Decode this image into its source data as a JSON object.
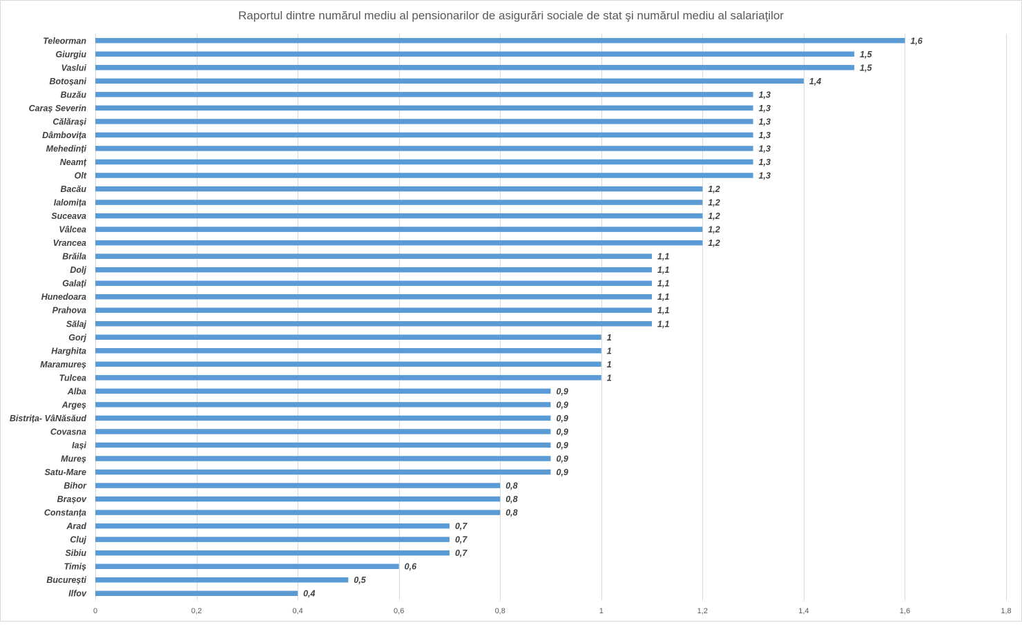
{
  "chart_data": {
    "type": "bar",
    "orientation": "horizontal",
    "title": "Raportul dintre numărul mediu al pensionarilor de asigurări sociale de stat şi numărul mediu al salariaţilor",
    "categories": [
      "Teleorman",
      "Giurgiu",
      "Vaslui",
      "Botoșani",
      "Buzău",
      "Caraș Severin",
      "Călărași",
      "Dâmbovița",
      "Mehedinți",
      "Neamț",
      "Olt",
      "Bacău",
      "Ialomița",
      "Suceava",
      "Vâlcea",
      "Vrancea",
      "Brăila",
      "Dolj",
      "Galați",
      "Hunedoara",
      "Prahova",
      "Sălaj",
      "Gorj",
      "Harghita",
      "Maramureș",
      "Tulcea",
      "Alba",
      "Argeș",
      "Bistrița- VâNăsăud",
      "Covasna",
      "Iași",
      "Mureș",
      "Satu-Mare",
      "Bihor",
      "Brașov",
      "Constanța",
      "Arad",
      "Cluj",
      "Sibiu",
      "Timiș",
      "București",
      "Ilfov"
    ],
    "values": [
      1.6,
      1.5,
      1.5,
      1.4,
      1.3,
      1.3,
      1.3,
      1.3,
      1.3,
      1.3,
      1.3,
      1.2,
      1.2,
      1.2,
      1.2,
      1.2,
      1.1,
      1.1,
      1.1,
      1.1,
      1.1,
      1.1,
      1,
      1,
      1,
      1,
      0.9,
      0.9,
      0.9,
      0.9,
      0.9,
      0.9,
      0.9,
      0.8,
      0.8,
      0.8,
      0.7,
      0.7,
      0.7,
      0.6,
      0.5,
      0.4
    ],
    "data_labels": [
      "1,6",
      "1,5",
      "1,5",
      "1,4",
      "1,3",
      "1,3",
      "1,3",
      "1,3",
      "1,3",
      "1,3",
      "1,3",
      "1,2",
      "1,2",
      "1,2",
      "1,2",
      "1,2",
      "1,1",
      "1,1",
      "1,1",
      "1,1",
      "1,1",
      "1,1",
      "1",
      "1",
      "1",
      "1",
      "0,9",
      "0,9",
      "0,9",
      "0,9",
      "0,9",
      "0,9",
      "0,9",
      "0,8",
      "0,8",
      "0,8",
      "0,7",
      "0,7",
      "0,7",
      "0,6",
      "0,5",
      "0,4"
    ],
    "xlim": [
      0,
      1.8
    ],
    "x_ticks": [
      0,
      0.2,
      0.4,
      0.6,
      0.8,
      1,
      1.2,
      1.4,
      1.6,
      1.8
    ],
    "x_tick_labels": [
      "0",
      "0,2",
      "0,4",
      "0,6",
      "0,8",
      "1",
      "1,2",
      "1,4",
      "1,6",
      "1,8"
    ],
    "xlabel": "",
    "ylabel": "",
    "grid": "vertical",
    "legend": "none",
    "bar_color": "#5b9bd5"
  }
}
